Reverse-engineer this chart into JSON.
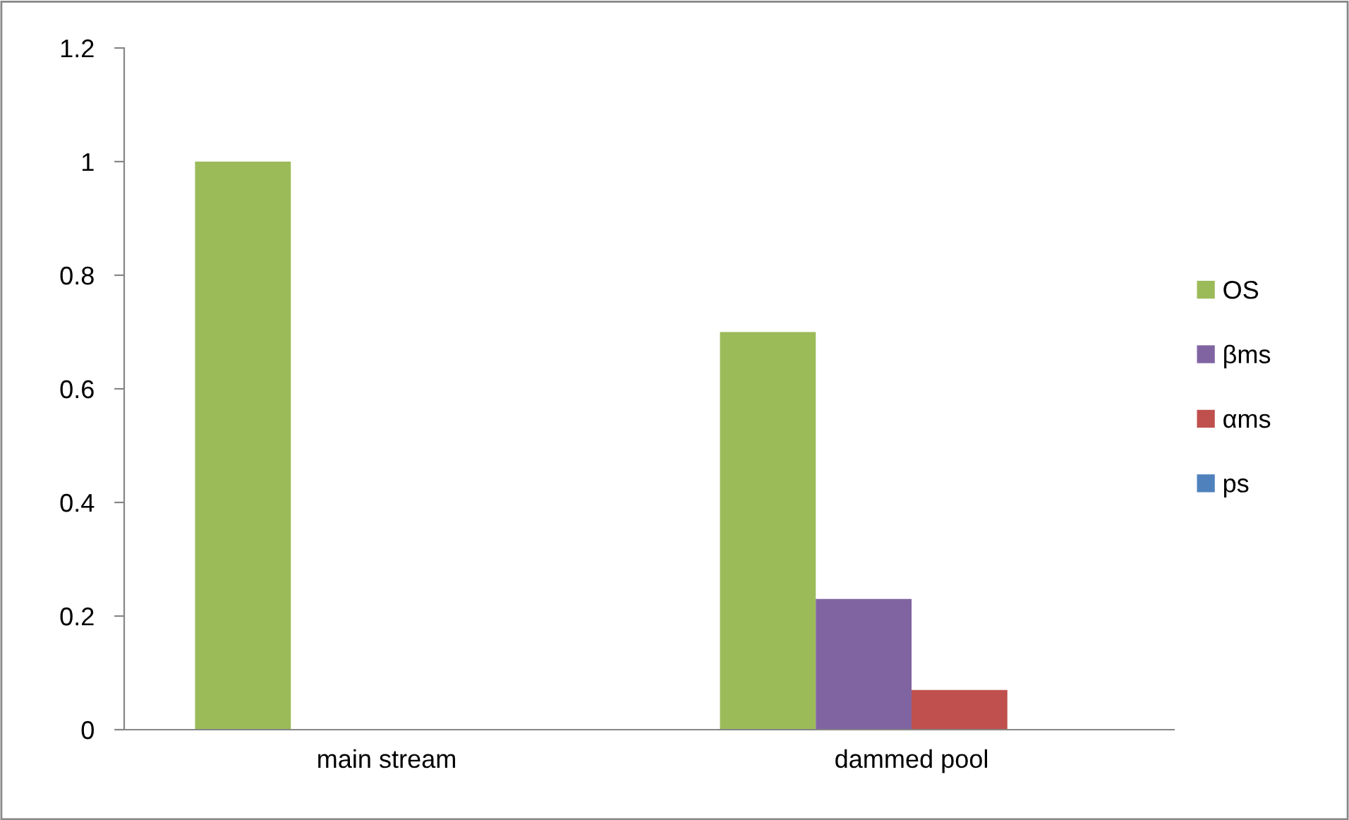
{
  "chart_data": {
    "type": "bar",
    "categories": [
      "main stream",
      "dammed pool"
    ],
    "series": [
      {
        "name": "OS",
        "color": "#9bbb59",
        "values": [
          1,
          0.7
        ]
      },
      {
        "name": "βms",
        "color": "#8064a2",
        "values": [
          0,
          0.23
        ]
      },
      {
        "name": "αms",
        "color": "#c0504d",
        "values": [
          0,
          0.07
        ]
      },
      {
        "name": "ps",
        "color": "#4f81bd",
        "values": [
          0,
          0
        ]
      }
    ],
    "ylim": [
      0,
      1.2
    ],
    "yticks": [
      0,
      0.2,
      0.4,
      0.6,
      0.8,
      1,
      1.2
    ],
    "grid": false,
    "legend": "right"
  }
}
